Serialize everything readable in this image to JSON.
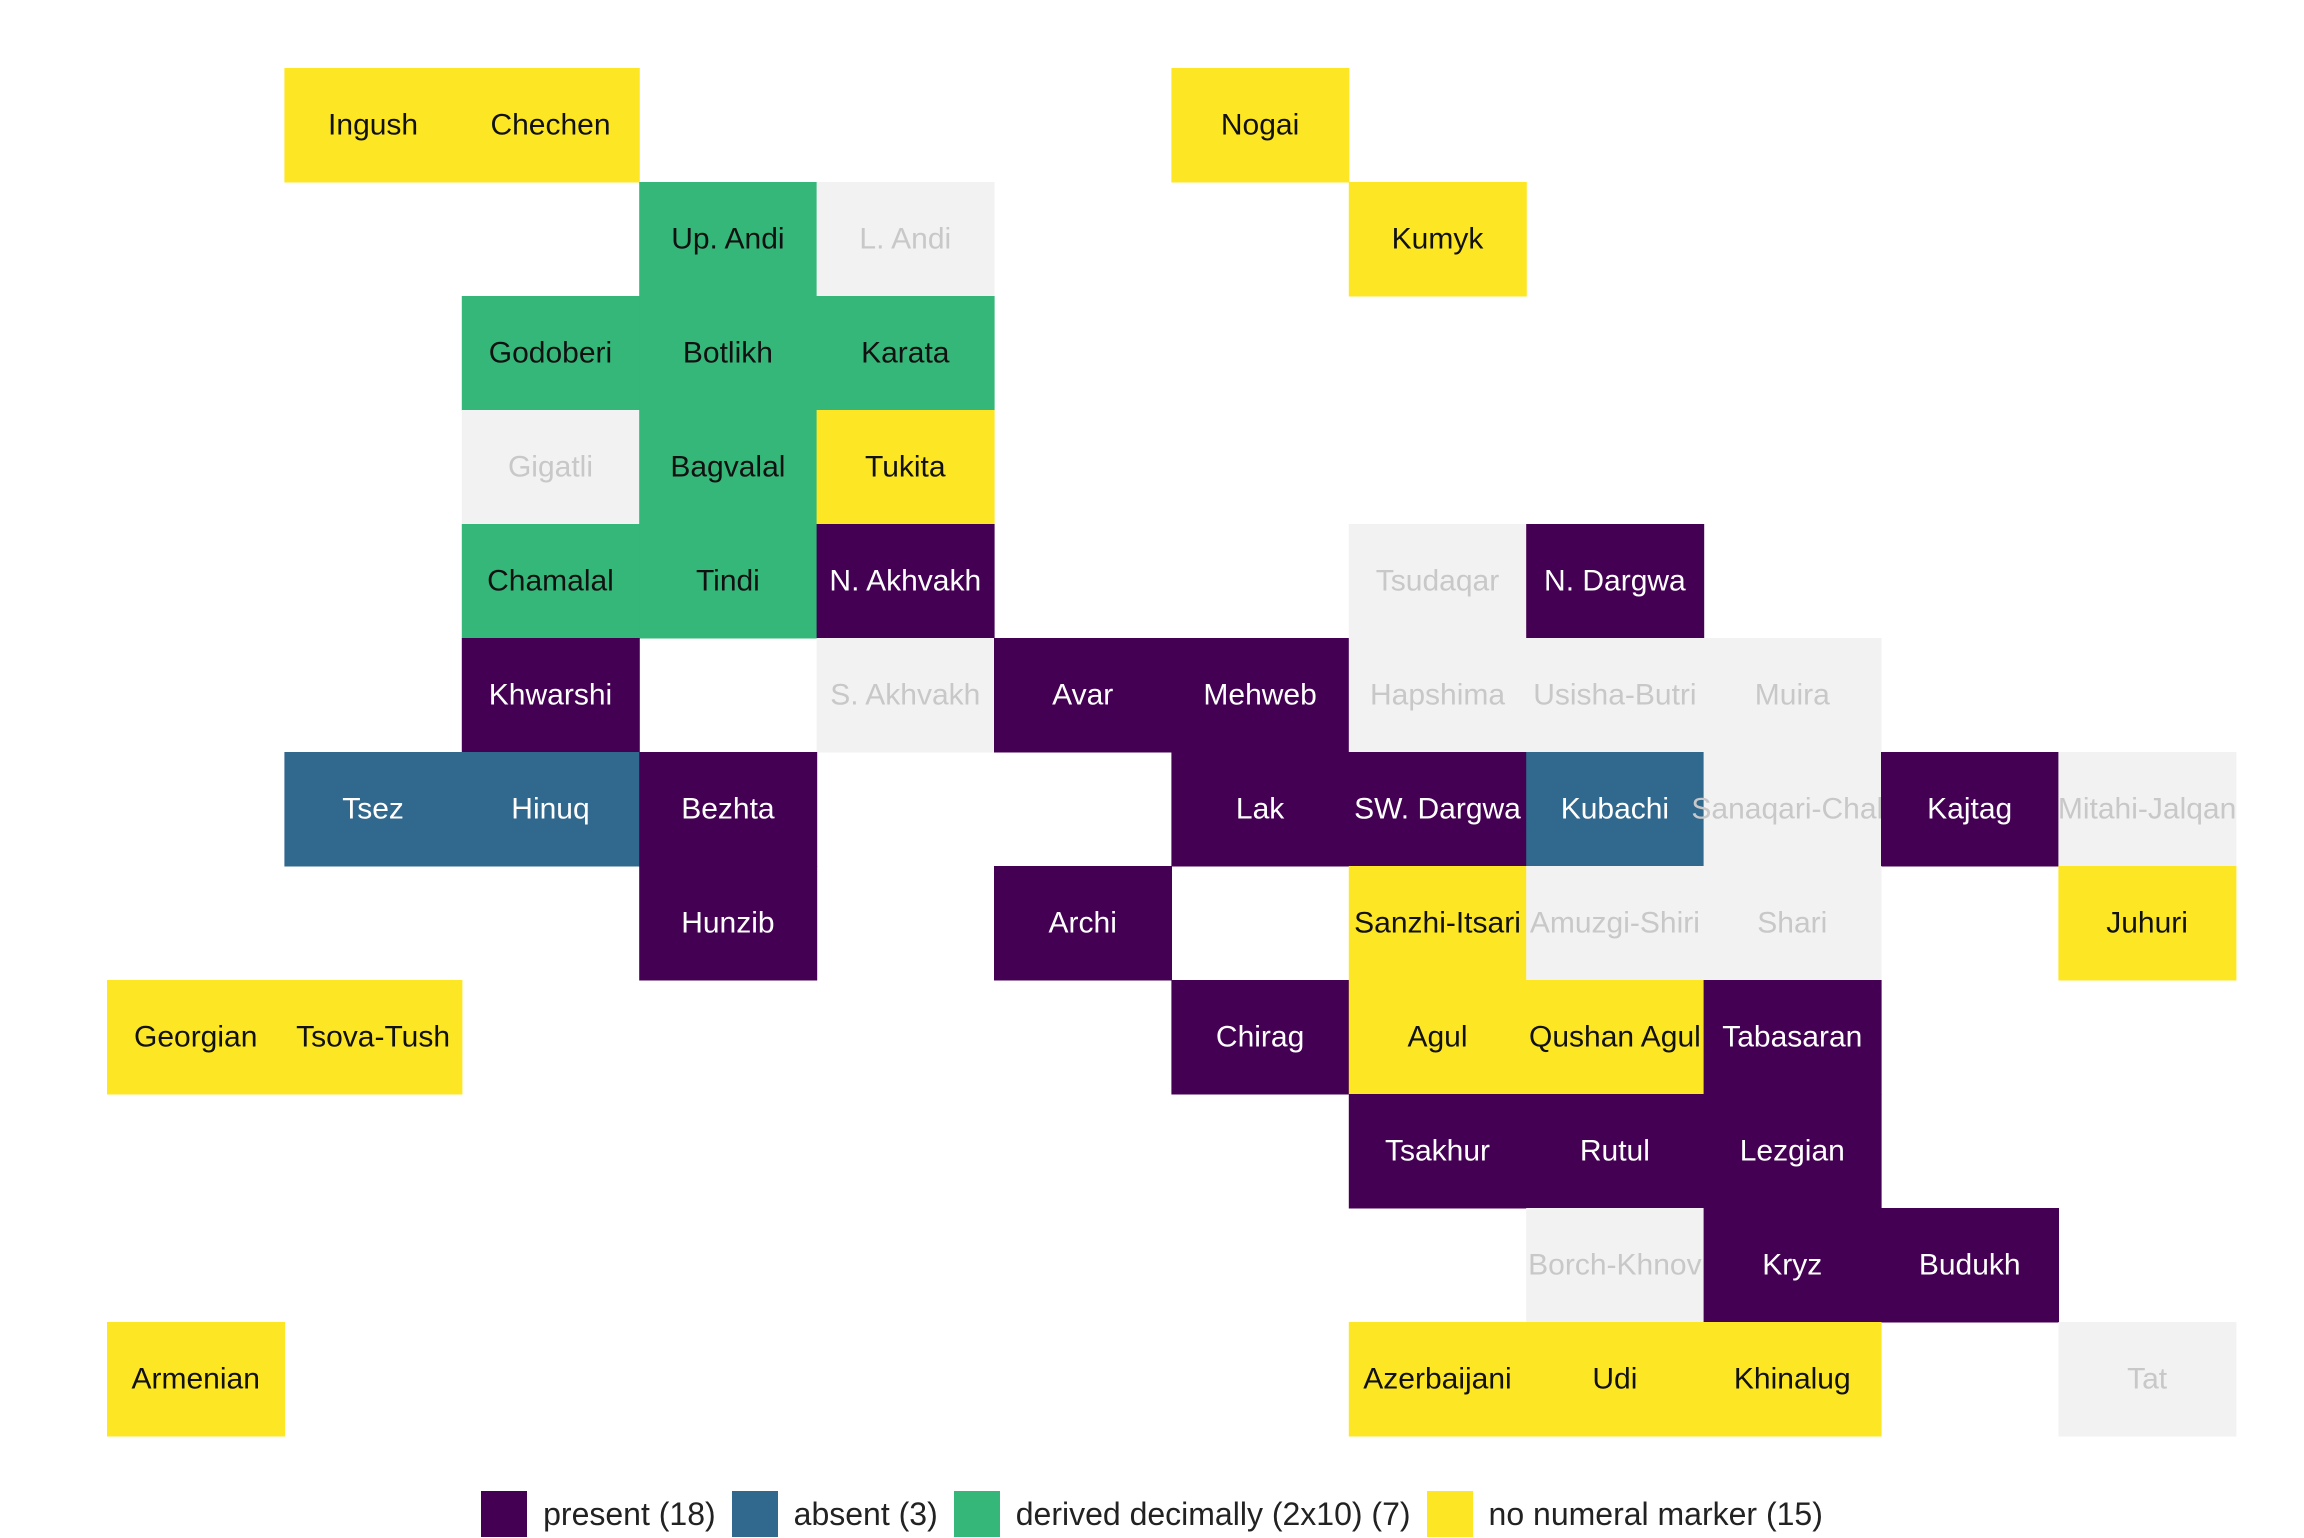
{
  "chart_data": {
    "type": "heatmap",
    "title": "",
    "xlabel": "",
    "ylabel": "",
    "grid": false,
    "legend_position": "bottom",
    "category_colors": {
      "present": "#440154",
      "absent": "#31688E",
      "derived": "#35B779",
      "none": "#FDE725",
      "nodata": "#F2F2F2"
    },
    "text_colors": {
      "present": "#ffffff",
      "absent": "#ffffff",
      "derived": "#111111",
      "none": "#111111",
      "nodata": "#c8c8c8"
    },
    "legend": [
      {
        "key": "present",
        "label": "present (18)"
      },
      {
        "key": "absent",
        "label": "absent (3)"
      },
      {
        "key": "derived",
        "label": "derived decimally (2x10) (7)"
      },
      {
        "key": "none",
        "label": "no numeral marker (15)"
      }
    ],
    "tiles": [
      {
        "col": 2,
        "row": 1,
        "name": "Ingush",
        "value": "none"
      },
      {
        "col": 3,
        "row": 1,
        "name": "Chechen",
        "value": "none"
      },
      {
        "col": 7,
        "row": 1,
        "name": "Nogai",
        "value": "none"
      },
      {
        "col": 4,
        "row": 2,
        "name": "Up. Andi",
        "value": "derived"
      },
      {
        "col": 5,
        "row": 2,
        "name": "L. Andi",
        "value": "nodata"
      },
      {
        "col": 8,
        "row": 2,
        "name": "Kumyk",
        "value": "none"
      },
      {
        "col": 3,
        "row": 3,
        "name": "Godoberi",
        "value": "derived"
      },
      {
        "col": 4,
        "row": 3,
        "name": "Botlikh",
        "value": "derived"
      },
      {
        "col": 5,
        "row": 3,
        "name": "Karata",
        "value": "derived"
      },
      {
        "col": 3,
        "row": 4,
        "name": "Gigatli",
        "value": "nodata"
      },
      {
        "col": 4,
        "row": 4,
        "name": "Bagvalal",
        "value": "derived"
      },
      {
        "col": 5,
        "row": 4,
        "name": "Tukita",
        "value": "none"
      },
      {
        "col": 3,
        "row": 5,
        "name": "Chamalal",
        "value": "derived"
      },
      {
        "col": 4,
        "row": 5,
        "name": "Tindi",
        "value": "derived"
      },
      {
        "col": 5,
        "row": 5,
        "name": "N. Akhvakh",
        "value": "present"
      },
      {
        "col": 8,
        "row": 5,
        "name": "Tsudaqar",
        "value": "nodata"
      },
      {
        "col": 9,
        "row": 5,
        "name": "N. Dargwa",
        "value": "present"
      },
      {
        "col": 3,
        "row": 6,
        "name": "Khwarshi",
        "value": "present"
      },
      {
        "col": 5,
        "row": 6,
        "name": "S. Akhvakh",
        "value": "nodata"
      },
      {
        "col": 6,
        "row": 6,
        "name": "Avar",
        "value": "present"
      },
      {
        "col": 7,
        "row": 6,
        "name": "Mehweb",
        "value": "present"
      },
      {
        "col": 8,
        "row": 6,
        "name": "Hapshima",
        "value": "nodata"
      },
      {
        "col": 9,
        "row": 6,
        "name": "Usisha-Butri",
        "value": "nodata"
      },
      {
        "col": 10,
        "row": 6,
        "name": "Muira",
        "value": "nodata"
      },
      {
        "col": 2,
        "row": 7,
        "name": "Tsez",
        "value": "absent"
      },
      {
        "col": 3,
        "row": 7,
        "name": "Hinuq",
        "value": "absent"
      },
      {
        "col": 4,
        "row": 7,
        "name": "Bezhta",
        "value": "present"
      },
      {
        "col": 7,
        "row": 7,
        "name": "Lak",
        "value": "present"
      },
      {
        "col": 8,
        "row": 7,
        "name": "SW. Dargwa",
        "value": "present"
      },
      {
        "col": 9,
        "row": 7,
        "name": "Kubachi",
        "value": "absent"
      },
      {
        "col": 10,
        "row": 7,
        "name": "Sanaqari-Chah",
        "value": "nodata"
      },
      {
        "col": 11,
        "row": 7,
        "name": "Kajtag",
        "value": "present"
      },
      {
        "col": 12,
        "row": 7,
        "name": "Mitahi-Jalqan",
        "value": "nodata"
      },
      {
        "col": 4,
        "row": 8,
        "name": "Hunzib",
        "value": "present"
      },
      {
        "col": 6,
        "row": 8,
        "name": "Archi",
        "value": "present"
      },
      {
        "col": 8,
        "row": 8,
        "name": "Sanzhi-Itsari",
        "value": "none"
      },
      {
        "col": 9,
        "row": 8,
        "name": "Amuzgi-Shiri",
        "value": "nodata"
      },
      {
        "col": 10,
        "row": 8,
        "name": "Shari",
        "value": "nodata"
      },
      {
        "col": 12,
        "row": 8,
        "name": "Juhuri",
        "value": "none"
      },
      {
        "col": 1,
        "row": 9,
        "name": "Georgian",
        "value": "none"
      },
      {
        "col": 2,
        "row": 9,
        "name": "Tsova-Tush",
        "value": "none"
      },
      {
        "col": 7,
        "row": 9,
        "name": "Chirag",
        "value": "present"
      },
      {
        "col": 8,
        "row": 9,
        "name": "Agul",
        "value": "none"
      },
      {
        "col": 9,
        "row": 9,
        "name": "Qushan Agul",
        "value": "none"
      },
      {
        "col": 10,
        "row": 9,
        "name": "Tabasaran",
        "value": "present"
      },
      {
        "col": 8,
        "row": 10,
        "name": "Tsakhur",
        "value": "present"
      },
      {
        "col": 9,
        "row": 10,
        "name": "Rutul",
        "value": "present"
      },
      {
        "col": 10,
        "row": 10,
        "name": "Lezgian",
        "value": "present"
      },
      {
        "col": 9,
        "row": 11,
        "name": "Borch-Khnov",
        "value": "nodata"
      },
      {
        "col": 10,
        "row": 11,
        "name": "Kryz",
        "value": "present"
      },
      {
        "col": 11,
        "row": 11,
        "name": "Budukh",
        "value": "present"
      },
      {
        "col": 1,
        "row": 12,
        "name": "Armenian",
        "value": "none"
      },
      {
        "col": 8,
        "row": 12,
        "name": "Azerbaijani",
        "value": "none"
      },
      {
        "col": 9,
        "row": 12,
        "name": "Udi",
        "value": "none"
      },
      {
        "col": 10,
        "row": 12,
        "name": "Khinalug",
        "value": "none"
      },
      {
        "col": 12,
        "row": 12,
        "name": "Tat",
        "value": "nodata"
      }
    ]
  }
}
